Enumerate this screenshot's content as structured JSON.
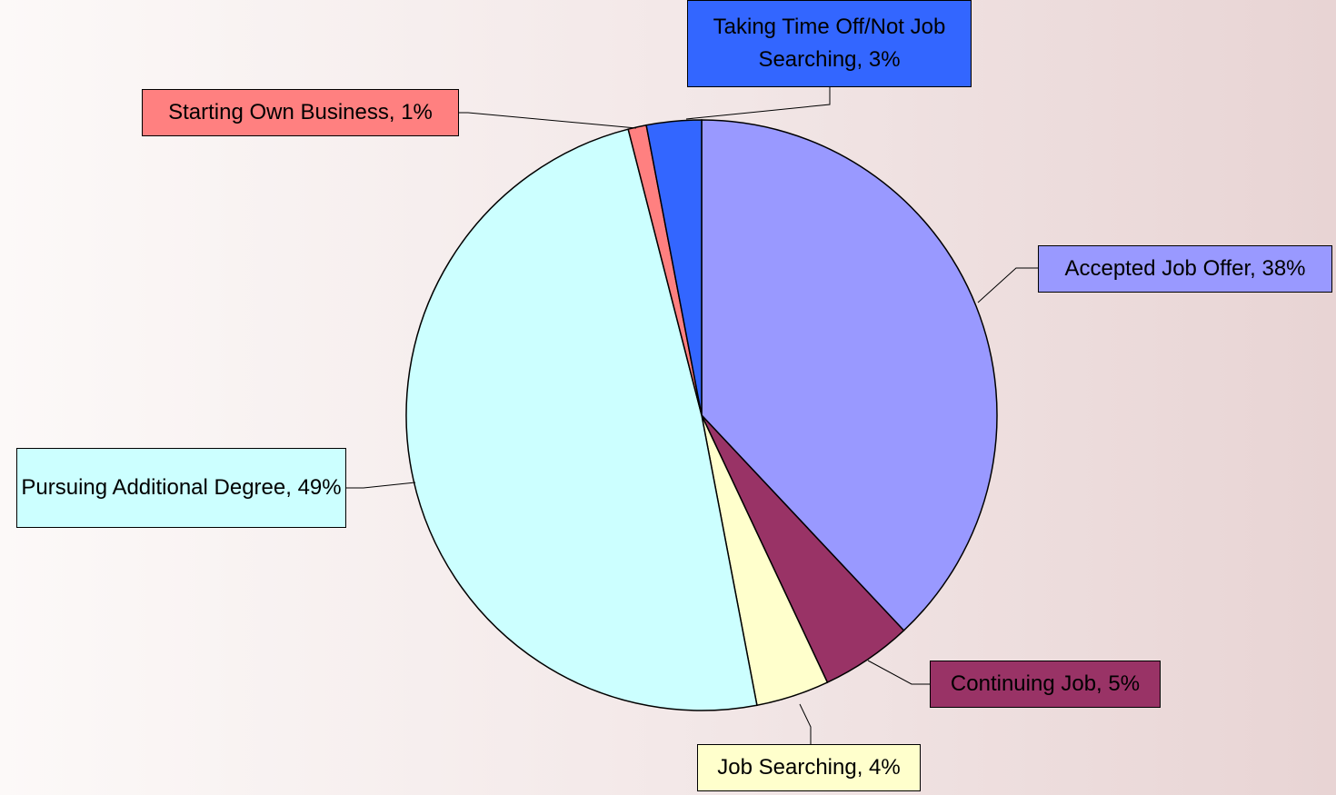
{
  "chart_data": {
    "type": "pie",
    "values": [
      38,
      5,
      4,
      49,
      1,
      3
    ],
    "value_labels": [
      "Accepted Job Offer, 38%",
      "Continuing Job, 5%",
      "Job Searching, 4%",
      "Pursuing Additional Degree, 49%",
      "Starting Own Business, 1%",
      "Taking Time Off/Not Job Searching, 3%"
    ],
    "colors": [
      "#9999ff",
      "#993366",
      "#ffffcc",
      "#ccffff",
      "#ff8080",
      "#3366ff"
    ]
  }
}
